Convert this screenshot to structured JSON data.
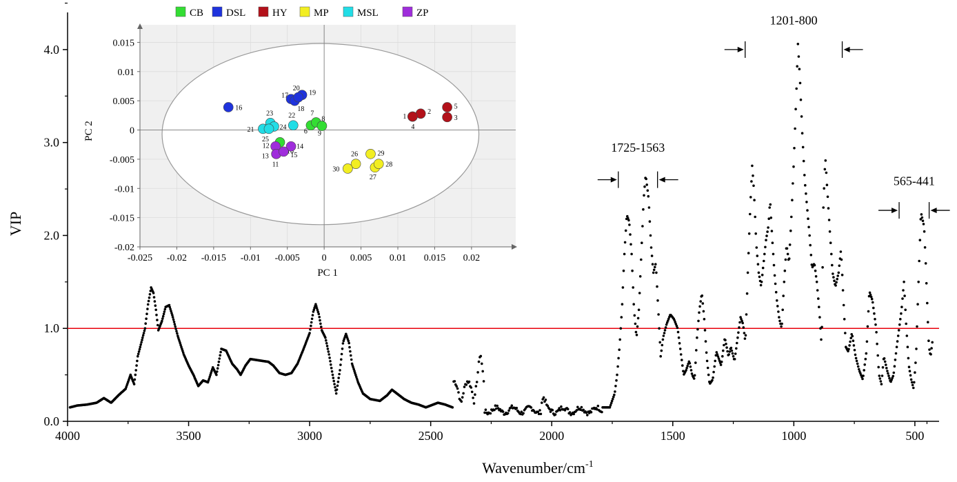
{
  "chart_data": [
    {
      "type": "scatter",
      "name": "vip-spectrum",
      "xlabel": "Wavenumber/cm",
      "xlabel_sup": "-1",
      "ylabel": "VIP",
      "xlim": [
        4000,
        400
      ],
      "ylim": [
        0,
        4.4
      ],
      "x_reversed": true,
      "x_ticks": [
        4000,
        3500,
        3000,
        2500,
        2000,
        1500,
        1000,
        500
      ],
      "x_tick_labels": [
        "4000",
        "3500",
        "3000",
        "2500",
        "2000",
        "1500",
        "1000",
        "500"
      ],
      "y_ticks": [
        0,
        1,
        2,
        3,
        4
      ],
      "y_tick_labels": [
        "0.0",
        "1.0",
        "2.0",
        "3.0",
        "4.0"
      ],
      "threshold": 1.0,
      "threshold_color": "#e8000b",
      "marker_color": "#000000",
      "series_profile": [
        [
          3990,
          0.15
        ],
        [
          3960,
          0.17
        ],
        [
          3920,
          0.18
        ],
        [
          3880,
          0.2
        ],
        [
          3850,
          0.25
        ],
        [
          3820,
          0.2
        ],
        [
          3790,
          0.28
        ],
        [
          3760,
          0.35
        ],
        [
          3740,
          0.5
        ],
        [
          3725,
          0.4
        ],
        [
          3710,
          0.7
        ],
        [
          3695,
          0.85
        ],
        [
          3680,
          1.0
        ],
        [
          3668,
          1.25
        ],
        [
          3655,
          1.44
        ],
        [
          3645,
          1.38
        ],
        [
          3635,
          1.2
        ],
        [
          3625,
          0.98
        ],
        [
          3610,
          1.08
        ],
        [
          3595,
          1.23
        ],
        [
          3580,
          1.25
        ],
        [
          3565,
          1.12
        ],
        [
          3545,
          0.92
        ],
        [
          3520,
          0.72
        ],
        [
          3500,
          0.6
        ],
        [
          3480,
          0.5
        ],
        [
          3460,
          0.38
        ],
        [
          3440,
          0.44
        ],
        [
          3420,
          0.42
        ],
        [
          3400,
          0.58
        ],
        [
          3385,
          0.5
        ],
        [
          3365,
          0.78
        ],
        [
          3345,
          0.76
        ],
        [
          3320,
          0.62
        ],
        [
          3300,
          0.56
        ],
        [
          3285,
          0.5
        ],
        [
          3265,
          0.6
        ],
        [
          3245,
          0.67
        ],
        [
          3220,
          0.66
        ],
        [
          3195,
          0.65
        ],
        [
          3170,
          0.64
        ],
        [
          3150,
          0.6
        ],
        [
          3125,
          0.52
        ],
        [
          3100,
          0.5
        ],
        [
          3075,
          0.52
        ],
        [
          3050,
          0.62
        ],
        [
          3025,
          0.78
        ],
        [
          3000,
          0.95
        ],
        [
          2985,
          1.18
        ],
        [
          2975,
          1.26
        ],
        [
          2962,
          1.15
        ],
        [
          2950,
          0.98
        ],
        [
          2935,
          0.9
        ],
        [
          2920,
          0.72
        ],
        [
          2905,
          0.5
        ],
        [
          2890,
          0.3
        ],
        [
          2875,
          0.55
        ],
        [
          2862,
          0.85
        ],
        [
          2850,
          0.94
        ],
        [
          2838,
          0.85
        ],
        [
          2825,
          0.62
        ],
        [
          2800,
          0.42
        ],
        [
          2780,
          0.3
        ],
        [
          2750,
          0.24
        ],
        [
          2710,
          0.22
        ],
        [
          2680,
          0.28
        ],
        [
          2660,
          0.34
        ],
        [
          2640,
          0.3
        ],
        [
          2610,
          0.24
        ],
        [
          2580,
          0.2
        ],
        [
          2550,
          0.18
        ],
        [
          2520,
          0.15
        ],
        [
          2500,
          0.17
        ],
        [
          2470,
          0.2
        ],
        [
          2440,
          0.18
        ],
        [
          2410,
          0.15
        ]
      ],
      "series_noisy": [
        [
          2405,
          0.05
        ],
        [
          2290,
          0.75
        ],
        [
          1790,
          0.15
        ]
      ],
      "series_profile_2": [
        [
          1790,
          0.15
        ],
        [
          1760,
          0.15
        ],
        [
          1740,
          0.3
        ],
        [
          1730,
          0.5
        ],
        [
          1720,
          0.8
        ],
        [
          1710,
          1.2
        ],
        [
          1700,
          1.8
        ],
        [
          1690,
          2.22
        ],
        [
          1680,
          2.15
        ],
        [
          1670,
          1.8
        ],
        [
          1660,
          1.2
        ],
        [
          1650,
          0.9
        ],
        [
          1640,
          1.2
        ],
        [
          1630,
          1.8
        ],
        [
          1620,
          2.4
        ],
        [
          1612,
          2.65
        ],
        [
          1600,
          2.4
        ],
        [
          1590,
          1.9
        ],
        [
          1580,
          1.6
        ],
        [
          1570,
          1.7
        ],
        [
          1560,
          1.2
        ],
        [
          1550,
          0.7
        ],
        [
          1540,
          0.9
        ],
        [
          1525,
          1.05
        ],
        [
          1510,
          1.15
        ],
        [
          1495,
          1.1
        ],
        [
          1480,
          1.0
        ],
        [
          1465,
          0.7
        ],
        [
          1455,
          0.5
        ],
        [
          1445,
          0.55
        ],
        [
          1432,
          0.65
        ],
        [
          1420,
          0.5
        ],
        [
          1410,
          0.45
        ],
        [
          1400,
          0.9
        ],
        [
          1390,
          1.2
        ],
        [
          1380,
          1.38
        ],
        [
          1370,
          1.1
        ],
        [
          1360,
          0.7
        ],
        [
          1348,
          0.4
        ],
        [
          1335,
          0.45
        ],
        [
          1320,
          0.75
        ],
        [
          1300,
          0.6
        ],
        [
          1285,
          0.9
        ],
        [
          1270,
          0.7
        ],
        [
          1260,
          0.8
        ],
        [
          1245,
          0.65
        ],
        [
          1232,
          0.9
        ],
        [
          1220,
          1.12
        ],
        [
          1210,
          1.05
        ],
        [
          1200,
          0.85
        ],
        [
          1190,
          1.6
        ],
        [
          1180,
          2.3
        ],
        [
          1172,
          2.75
        ],
        [
          1165,
          2.5
        ],
        [
          1155,
          1.9
        ],
        [
          1145,
          1.6
        ],
        [
          1135,
          1.45
        ],
        [
          1125,
          1.7
        ],
        [
          1115,
          1.95
        ],
        [
          1105,
          2.1
        ],
        [
          1098,
          2.38
        ],
        [
          1090,
          2.0
        ],
        [
          1080,
          1.6
        ],
        [
          1070,
          1.3
        ],
        [
          1060,
          1.1
        ],
        [
          1050,
          1.0
        ],
        [
          1040,
          1.5
        ],
        [
          1030,
          1.9
        ],
        [
          1020,
          1.7
        ],
        [
          1010,
          2.2
        ],
        [
          1000,
          2.8
        ],
        [
          990,
          3.5
        ],
        [
          983,
          4.06
        ],
        [
          975,
          3.7
        ],
        [
          965,
          3.1
        ],
        [
          955,
          2.6
        ],
        [
          945,
          2.3
        ],
        [
          935,
          2.0
        ],
        [
          925,
          1.65
        ],
        [
          915,
          1.7
        ],
        [
          905,
          1.5
        ],
        [
          895,
          1.2
        ],
        [
          885,
          0.8
        ],
        [
          878,
          2.3
        ],
        [
          870,
          2.85
        ],
        [
          862,
          2.5
        ],
        [
          850,
          2.0
        ],
        [
          840,
          1.6
        ],
        [
          828,
          1.45
        ],
        [
          815,
          1.6
        ],
        [
          805,
          1.85
        ],
        [
          795,
          1.3
        ],
        [
          785,
          0.8
        ],
        [
          775,
          0.75
        ],
        [
          760,
          0.95
        ],
        [
          745,
          0.7
        ],
        [
          730,
          0.55
        ],
        [
          715,
          0.45
        ],
        [
          700,
          0.75
        ],
        [
          688,
          1.4
        ],
        [
          675,
          1.3
        ],
        [
          660,
          1.0
        ],
        [
          648,
          0.5
        ],
        [
          638,
          0.4
        ],
        [
          628,
          0.7
        ],
        [
          615,
          0.55
        ],
        [
          600,
          0.42
        ],
        [
          588,
          0.5
        ],
        [
          575,
          0.8
        ],
        [
          565,
          1.0
        ],
        [
          555,
          1.2
        ],
        [
          545,
          1.5
        ],
        [
          535,
          1.0
        ],
        [
          525,
          0.6
        ],
        [
          515,
          0.45
        ],
        [
          505,
          0.35
        ],
        [
          495,
          0.7
        ],
        [
          485,
          1.5
        ],
        [
          475,
          2.25
        ],
        [
          462,
          2.1
        ],
        [
          455,
          1.7
        ],
        [
          448,
          1.2
        ],
        [
          442,
          0.8
        ],
        [
          435,
          0.7
        ],
        [
          428,
          0.85
        ]
      ],
      "annotations": [
        {
          "label": "1725-1563",
          "from": 1725,
          "to": 1563,
          "y": 2.6,
          "label_y": 2.9
        },
        {
          "label": "1201-800",
          "from": 1201,
          "to": 800,
          "y": 4.0,
          "label_y": 4.27
        },
        {
          "label": "565-441",
          "from": 565,
          "to": 441,
          "y": 2.27,
          "label_y": 2.54
        }
      ]
    },
    {
      "type": "scatter",
      "name": "pca-score-inset",
      "xlabel": "PC 1",
      "ylabel": "PC 2",
      "xlim": [
        -0.025,
        0.026
      ],
      "ylim": [
        -0.02,
        0.018
      ],
      "x_ticks": [
        -0.025,
        -0.02,
        -0.015,
        -0.01,
        -0.005,
        0,
        0.005,
        0.01,
        0.015,
        0.02
      ],
      "x_tick_labels": [
        "-0.025",
        "-0.02",
        "-0.015",
        "-0.01",
        "-0.005",
        "0",
        "0.005",
        "0.01",
        "0.015",
        "0.02"
      ],
      "y_ticks": [
        -0.02,
        -0.015,
        -0.01,
        -0.005,
        0,
        0.005,
        0.01,
        0.015
      ],
      "y_tick_labels": [
        "-0.02",
        "-0.015",
        "-0.01",
        "-0.005",
        "0",
        "0.005",
        "0.01",
        "0.015"
      ],
      "ellipse": {
        "cx": -0.0005,
        "cy": -0.0007,
        "rx": 0.0215,
        "ry": 0.0155
      },
      "legend": [
        {
          "label": "CB",
          "color": "#33dd33"
        },
        {
          "label": "DSL",
          "color": "#1f33dd"
        },
        {
          "label": "HY",
          "color": "#b3111a"
        },
        {
          "label": "MP",
          "color": "#f2ee22"
        },
        {
          "label": "MSL",
          "color": "#22dde6"
        },
        {
          "label": "ZP",
          "color": "#9f2ddb"
        }
      ],
      "points": [
        {
          "id": "1",
          "group": "HY",
          "x": 0.012,
          "y": 0.0023
        },
        {
          "id": "2",
          "group": "HY",
          "x": 0.0131,
          "y": 0.0028
        },
        {
          "id": "3",
          "group": "HY",
          "x": 0.0167,
          "y": 0.0022
        },
        {
          "id": "4",
          "group": "HY",
          "x": 0.012,
          "y": 0.0023
        },
        {
          "id": "5",
          "group": "HY",
          "x": 0.0167,
          "y": 0.0039
        },
        {
          "id": "6",
          "group": "CB",
          "x": -0.0018,
          "y": 0.0008
        },
        {
          "id": "7",
          "group": "CB",
          "x": -0.0011,
          "y": 0.0013
        },
        {
          "id": "8",
          "group": "CB",
          "x": -0.0011,
          "y": 0.0013
        },
        {
          "id": "9",
          "group": "CB",
          "x": -0.0003,
          "y": 0.0007
        },
        {
          "id": "10",
          "group": "CB",
          "x": -0.006,
          "y": -0.0021
        },
        {
          "id": "11",
          "group": "ZP",
          "x": -0.0065,
          "y": -0.0041
        },
        {
          "id": "12",
          "group": "ZP",
          "x": -0.0066,
          "y": -0.0028
        },
        {
          "id": "13",
          "group": "ZP",
          "x": -0.0065,
          "y": -0.0041
        },
        {
          "id": "14",
          "group": "ZP",
          "x": -0.0045,
          "y": -0.0028
        },
        {
          "id": "15",
          "group": "ZP",
          "x": -0.0055,
          "y": -0.0037
        },
        {
          "id": "16",
          "group": "DSL",
          "x": -0.013,
          "y": 0.0039
        },
        {
          "id": "17",
          "group": "DSL",
          "x": -0.0045,
          "y": 0.0053
        },
        {
          "id": "18",
          "group": "DSL",
          "x": -0.004,
          "y": 0.005
        },
        {
          "id": "19",
          "group": "DSL",
          "x": -0.003,
          "y": 0.006
        },
        {
          "id": "20",
          "group": "DSL",
          "x": -0.0035,
          "y": 0.0056
        },
        {
          "id": "21",
          "group": "MSL",
          "x": -0.0083,
          "y": 0.0002
        },
        {
          "id": "22",
          "group": "MSL",
          "x": -0.0042,
          "y": 0.0008
        },
        {
          "id": "23",
          "group": "MSL",
          "x": -0.0073,
          "y": 0.0012
        },
        {
          "id": "24",
          "group": "MSL",
          "x": -0.0068,
          "y": 0.0006
        },
        {
          "id": "25",
          "group": "MSL",
          "x": -0.0075,
          "y": 0.0002
        },
        {
          "id": "26",
          "group": "MP",
          "x": 0.0043,
          "y": -0.0058
        },
        {
          "id": "27",
          "group": "MP",
          "x": 0.0069,
          "y": -0.0064
        },
        {
          "id": "28",
          "group": "MP",
          "x": 0.0074,
          "y": -0.0058
        },
        {
          "id": "29",
          "group": "MP",
          "x": 0.0063,
          "y": -0.0041
        },
        {
          "id": "30",
          "group": "MP",
          "x": 0.0032,
          "y": -0.0066
        }
      ]
    }
  ]
}
